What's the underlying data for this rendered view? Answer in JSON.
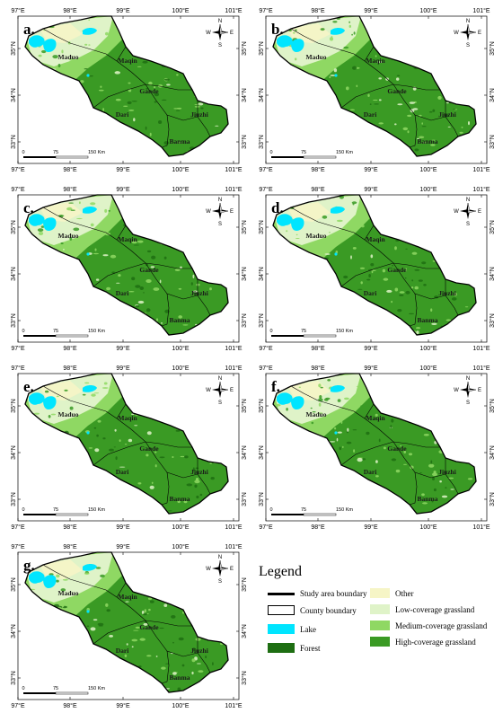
{
  "panels": [
    "a.",
    "b.",
    "c.",
    "d.",
    "e.",
    "f.",
    "g."
  ],
  "lon_ticks": [
    "97°E",
    "98°E",
    "99°E",
    "100°E",
    "101°E"
  ],
  "lat_ticks": [
    "35°N",
    "34°N",
    "33°N"
  ],
  "counties": [
    "Maduo",
    "Maqin",
    "Gande",
    "Dari",
    "Jiuzhi",
    "Banma"
  ],
  "scale_bar": [
    "0",
    "75",
    "150 Km"
  ],
  "compass": {
    "n": "N",
    "s": "S",
    "w": "W",
    "e": "E"
  },
  "legend": {
    "title": "Legend",
    "items": [
      {
        "label": "Study area boundary",
        "kind": "thick-line"
      },
      {
        "label": "County boundary",
        "kind": "outline-box"
      },
      {
        "label": "Lake",
        "color": "#00e5ff"
      },
      {
        "label": "Forest",
        "color": "#1e6e12"
      },
      {
        "label": "Other",
        "color": "#f6f5c6"
      },
      {
        "label": "Low-coverage grassland",
        "color": "#dff3c8"
      },
      {
        "label": "Medium-coverage grassland",
        "color": "#8fd863"
      },
      {
        "label": "High-coverage grassland",
        "color": "#3a9a24"
      }
    ]
  },
  "colors": {
    "lake": "#00e5ff",
    "high_grass": "#3a9a24",
    "medium_grass": "#8fd863",
    "low_grass": "#dff3c8",
    "other": "#f6f5c6",
    "forest": "#1e6e12"
  }
}
